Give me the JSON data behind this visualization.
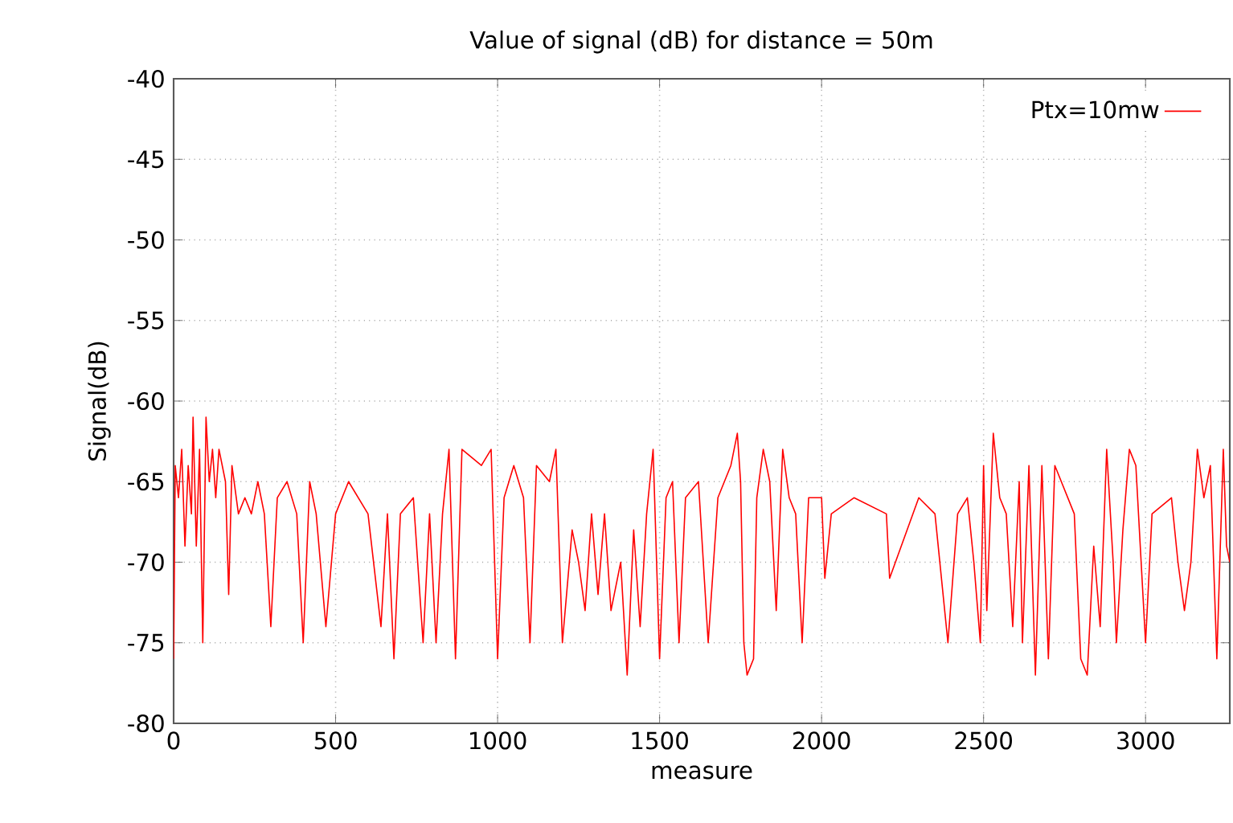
{
  "chart_data": {
    "type": "line",
    "title": "Value of signal (dB) for distance = 50m",
    "xlabel": "measure",
    "ylabel": "Signal(dB)",
    "xlim": [
      0,
      3260
    ],
    "ylim": [
      -80,
      -40
    ],
    "xticks": [
      0,
      500,
      1000,
      1500,
      2000,
      2500,
      3000
    ],
    "yticks": [
      -80,
      -75,
      -70,
      -65,
      -60,
      -55,
      -50,
      -45,
      -40
    ],
    "grid": true,
    "legend": "top right",
    "line_style": "solid",
    "marker": "none",
    "series": [
      {
        "name": "Ptx=10mw",
        "color": "#ff0000",
        "x": [
          0,
          5,
          15,
          25,
          35,
          45,
          55,
          60,
          70,
          80,
          90,
          100,
          110,
          120,
          130,
          140,
          160,
          170,
          180,
          200,
          220,
          240,
          260,
          280,
          300,
          320,
          350,
          380,
          400,
          420,
          440,
          470,
          500,
          540,
          600,
          640,
          660,
          680,
          700,
          740,
          770,
          790,
          810,
          830,
          850,
          870,
          890,
          950,
          980,
          1000,
          1020,
          1050,
          1080,
          1100,
          1120,
          1160,
          1180,
          1200,
          1230,
          1250,
          1270,
          1290,
          1310,
          1330,
          1350,
          1380,
          1400,
          1420,
          1440,
          1460,
          1480,
          1500,
          1520,
          1540,
          1560,
          1580,
          1620,
          1650,
          1680,
          1700,
          1720,
          1740,
          1750,
          1760,
          1770,
          1790,
          1800,
          1820,
          1840,
          1860,
          1880,
          1900,
          1920,
          1940,
          1960,
          2000,
          2010,
          2030,
          2100,
          2200,
          2210,
          2300,
          2350,
          2390,
          2420,
          2450,
          2470,
          2490,
          2500,
          2510,
          2530,
          2550,
          2570,
          2590,
          2610,
          2620,
          2640,
          2660,
          2680,
          2700,
          2720,
          2780,
          2800,
          2820,
          2840,
          2860,
          2880,
          2900,
          2910,
          2930,
          2950,
          2970,
          3000,
          3020,
          3080,
          3100,
          3120,
          3140,
          3160,
          3180,
          3200,
          3220,
          3240,
          3250,
          3260
        ],
        "values": [
          -76,
          -64,
          -66,
          -63,
          -69,
          -64,
          -67,
          -61,
          -69,
          -63,
          -75,
          -61,
          -65,
          -63,
          -66,
          -63,
          -65,
          -72,
          -64,
          -67,
          -66,
          -67,
          -65,
          -67,
          -74,
          -66,
          -65,
          -67,
          -75,
          -65,
          -67,
          -74,
          -67,
          -65,
          -67,
          -74,
          -67,
          -76,
          -67,
          -66,
          -75,
          -67,
          -75,
          -67,
          -63,
          -76,
          -63,
          -64,
          -63,
          -76,
          -66,
          -64,
          -66,
          -75,
          -64,
          -65,
          -63,
          -75,
          -68,
          -70,
          -73,
          -67,
          -72,
          -67,
          -73,
          -70,
          -77,
          -68,
          -74,
          -67,
          -63,
          -76,
          -66,
          -65,
          -75,
          -66,
          -65,
          -75,
          -66,
          -65,
          -64,
          -62,
          -65,
          -75,
          -77,
          -76,
          -66,
          -63,
          -65,
          -73,
          -63,
          -66,
          -67,
          -75,
          -66,
          -66,
          -71,
          -67,
          -66,
          -67,
          -71,
          -66,
          -67,
          -75,
          -67,
          -66,
          -70,
          -75,
          -64,
          -73,
          -62,
          -66,
          -67,
          -74,
          -65,
          -75,
          -64,
          -77,
          -64,
          -76,
          -64,
          -67,
          -76,
          -77,
          -69,
          -74,
          -63,
          -70,
          -75,
          -68,
          -63,
          -64,
          -75,
          -67,
          -66,
          -70,
          -73,
          -70,
          -63,
          -66,
          -64,
          -76,
          -63,
          -69,
          -70
        ]
      }
    ]
  }
}
